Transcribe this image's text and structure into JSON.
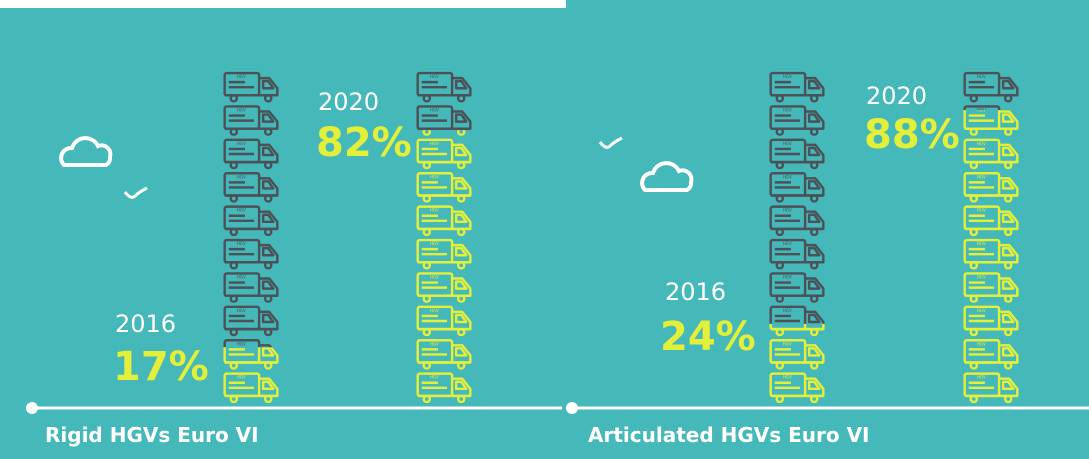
{
  "chart_data": [
    {
      "type": "pictograph",
      "title": "Rigid HGVs Euro VI",
      "categories": [
        "2016",
        "2020"
      ],
      "values": [
        17,
        82
      ],
      "value_labels": [
        "17%",
        "82%"
      ],
      "ylim": [
        0,
        100
      ],
      "color": "#e4ef3a",
      "base_color": "#4b5157"
    },
    {
      "type": "pictograph",
      "title": "Articulated HGVs Euro VI",
      "categories": [
        "2016",
        "2020"
      ],
      "values": [
        24,
        88
      ],
      "value_labels": [
        "24%",
        "88%"
      ],
      "ylim": [
        0,
        100
      ],
      "color": "#e4ef3a",
      "base_color": "#4b5157"
    }
  ]
}
